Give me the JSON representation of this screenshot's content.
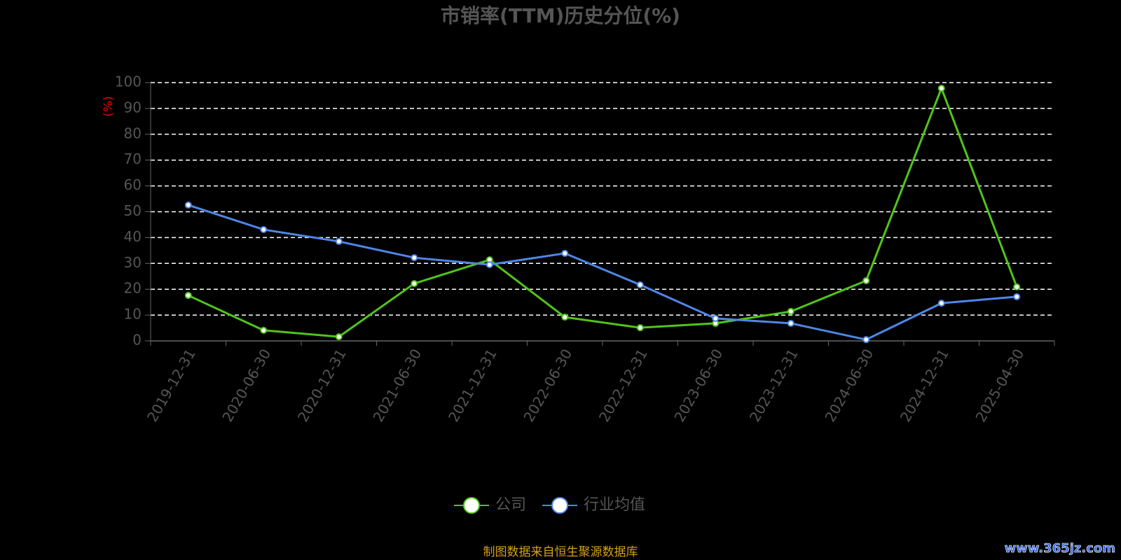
{
  "chart_data": {
    "type": "line",
    "title": "市销率(TTM)历史分位(%)",
    "y_label": "(%)",
    "categories": [
      "2019-12-31",
      "2020-06-30",
      "2020-12-31",
      "2021-06-30",
      "2021-12-31",
      "2022-06-30",
      "2022-12-31",
      "2023-06-30",
      "2023-12-31",
      "2024-06-30",
      "2024-12-31",
      "2025-04-30"
    ],
    "series": [
      {
        "name": "公司",
        "color": "#52c41a",
        "values": [
          17.6,
          4.1,
          1.6,
          22.2,
          31.4,
          9.2,
          5.1,
          6.8,
          11.4,
          23.3,
          97.8,
          20.9
        ]
      },
      {
        "name": "行业均值",
        "color": "#4f86e6",
        "values": [
          52.6,
          43.1,
          38.5,
          32.2,
          29.5,
          33.9,
          21.7,
          8.7,
          6.8,
          0.5,
          14.6,
          17.1
        ]
      }
    ],
    "ylim": [
      0,
      100
    ],
    "yticks": [
      0,
      10,
      20,
      30,
      40,
      50,
      60,
      70,
      80,
      90,
      100
    ],
    "grid": true,
    "legend": "bottom",
    "source": "制图数据来自恒生聚源数据库",
    "watermark": "www.365jz.com"
  }
}
